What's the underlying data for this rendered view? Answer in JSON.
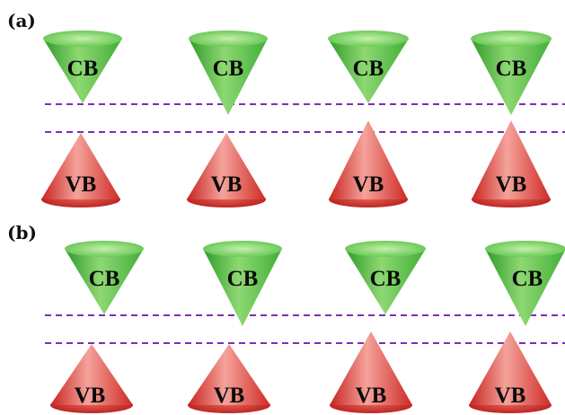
{
  "figure": {
    "colors": {
      "conduction_band": "#43b43a",
      "conduction_band_light": "#a8e48c",
      "valence_band": "#d9302c",
      "valence_band_light": "#f6a7a0",
      "dashed_line": "#7a2fb5",
      "background": "#ffffff"
    },
    "panels": [
      {
        "label": "(a)",
        "cones": [
          {
            "cb": "CB",
            "vb": "VB"
          },
          {
            "cb": "CB",
            "vb": "VB"
          },
          {
            "cb": "CB",
            "vb": "VB"
          },
          {
            "cb": "CB",
            "vb": "VB"
          }
        ]
      },
      {
        "label": "(b)",
        "cones": [
          {
            "cb": "CB",
            "vb": "VB"
          },
          {
            "cb": "CB",
            "vb": "VB"
          },
          {
            "cb": "CB",
            "vb": "VB"
          },
          {
            "cb": "CB",
            "vb": "VB"
          }
        ]
      }
    ]
  }
}
